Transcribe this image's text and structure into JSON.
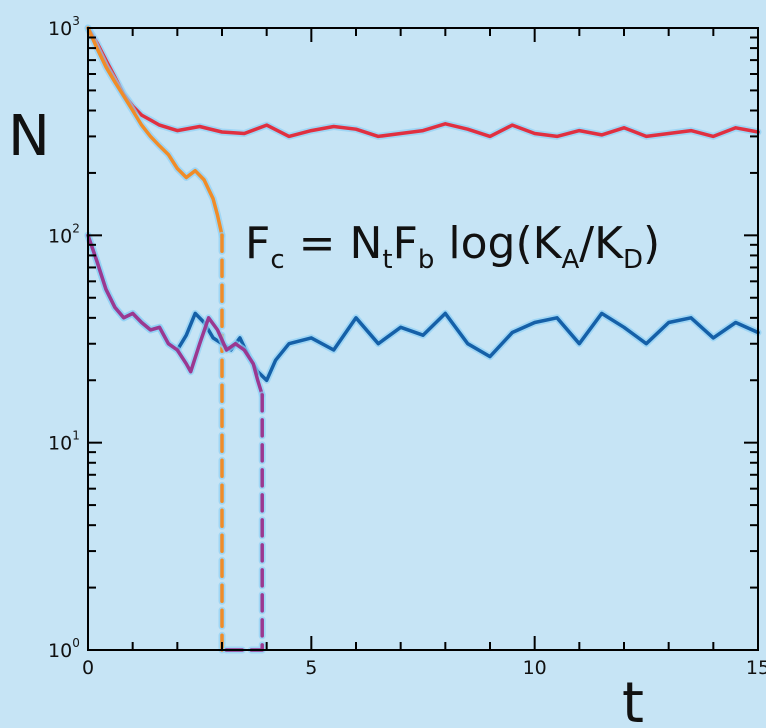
{
  "background": "#c6e4f5",
  "chart_data": {
    "type": "line",
    "xlabel": "t",
    "ylabel": "N",
    "xlim": [
      0,
      15
    ],
    "ylim": [
      1,
      1000
    ],
    "yscale": "log",
    "grid": false,
    "legend": "none",
    "x_ticks": [
      {
        "value": 0,
        "label": "0"
      },
      {
        "value": 5,
        "label": "5"
      },
      {
        "value": 10,
        "label": "10"
      },
      {
        "value": 15,
        "label": "15"
      }
    ],
    "y_ticks": [
      {
        "value": 1,
        "base": "10",
        "exp": "0"
      },
      {
        "value": 10,
        "base": "10",
        "exp": "1"
      },
      {
        "value": 100,
        "base": "10",
        "exp": "2"
      },
      {
        "value": 1000,
        "base": "10",
        "exp": "3"
      }
    ],
    "annotation": {
      "text": "Fc = NtFb log(KA/KD)",
      "parts": {
        "F": "F",
        "c": "c",
        "eq": " = ",
        "N": "N",
        "t": "t",
        "F2": "F",
        "b": "b",
        "log": " log(",
        "K1": "K",
        "A": "A",
        "slash": "/",
        "K2": "K",
        "D": "D",
        "close": ")"
      },
      "x": 6.0,
      "y": 80
    },
    "series": [
      {
        "color": "#e03040",
        "style": "solid",
        "x": [
          0,
          0.2,
          0.4,
          0.6,
          0.8,
          1.0,
          1.2,
          1.4,
          1.6,
          1.8,
          2.0,
          2.5,
          3.0,
          3.5,
          4.0,
          4.5,
          5.0,
          5.5,
          6.0,
          6.5,
          7.0,
          7.5,
          8.0,
          8.5,
          9.0,
          9.5,
          10.0,
          10.5,
          11.0,
          11.5,
          12.0,
          12.5,
          13.0,
          13.5,
          14.0,
          14.5,
          15.0
        ],
        "y": [
          1000,
          850,
          700,
          580,
          480,
          420,
          380,
          360,
          340,
          330,
          320,
          335,
          315,
          310,
          340,
          300,
          320,
          335,
          325,
          300,
          310,
          320,
          345,
          325,
          300,
          340,
          310,
          300,
          320,
          305,
          330,
          300,
          310,
          320,
          300,
          330,
          315
        ]
      },
      {
        "color": "#f08c28",
        "style": "solid",
        "x": [
          0,
          0.2,
          0.4,
          0.6,
          0.8,
          1.0,
          1.2,
          1.4,
          1.6,
          1.8,
          2.0,
          2.2,
          2.4,
          2.6,
          2.8,
          2.9,
          3.0
        ],
        "y": [
          1000,
          800,
          650,
          550,
          470,
          400,
          340,
          300,
          270,
          245,
          210,
          190,
          205,
          185,
          150,
          125,
          100
        ]
      },
      {
        "color": "#f08c28",
        "style": "dashed",
        "x": [
          3.0,
          3.0,
          3.0,
          3.0
        ],
        "y": [
          100,
          10,
          3,
          1
        ]
      },
      {
        "color": "#1560a8",
        "style": "solid",
        "x": [
          0,
          0.2,
          0.4,
          0.6,
          0.8,
          1.0,
          1.2,
          1.4,
          1.6,
          1.8,
          2.0,
          2.2,
          2.4,
          2.6,
          2.8,
          3.0,
          3.2,
          3.4,
          3.6,
          3.8,
          4.0,
          4.2,
          4.5,
          5.0,
          5.5,
          6.0,
          6.5,
          7.0,
          7.5,
          8.0,
          8.5,
          9.0,
          9.5,
          10.0,
          10.5,
          11.0,
          11.5,
          12.0,
          12.5,
          13.0,
          13.5,
          14.0,
          14.5,
          15.0
        ],
        "y": [
          100,
          75,
          55,
          45,
          40,
          42,
          38,
          35,
          36,
          30,
          28,
          33,
          42,
          38,
          32,
          30,
          28,
          32,
          26,
          22,
          20,
          25,
          30,
          32,
          28,
          40,
          30,
          36,
          33,
          42,
          30,
          26,
          34,
          38,
          40,
          30,
          42,
          36,
          30,
          38,
          40,
          32,
          38,
          34
        ]
      },
      {
        "color": "#9b3890",
        "style": "solid",
        "x": [
          0,
          0.2,
          0.4,
          0.6,
          0.8,
          1.0,
          1.2,
          1.4,
          1.6,
          1.8,
          2.0,
          2.2,
          2.3,
          2.5,
          2.7,
          2.9,
          3.1,
          3.3,
          3.5,
          3.7,
          3.8,
          3.9
        ],
        "y": [
          100,
          75,
          55,
          45,
          40,
          42,
          38,
          35,
          36,
          30,
          28,
          24,
          22,
          30,
          40,
          35,
          28,
          30,
          28,
          24,
          20,
          17
        ]
      },
      {
        "color": "#9b3890",
        "style": "dashed",
        "x": [
          3.9,
          3.9,
          3.9,
          3.9,
          2.95
        ],
        "y": [
          17,
          5,
          2,
          1,
          1
        ]
      }
    ]
  }
}
